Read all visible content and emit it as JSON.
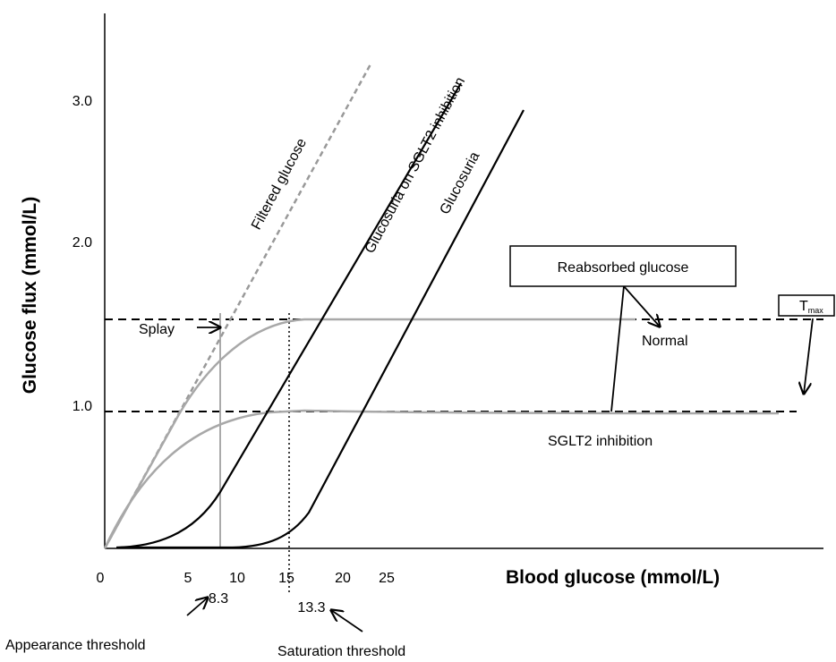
{
  "axes": {
    "y_title": "Glucose flux (mmol/L)",
    "x_title": "Blood glucose (mmol/L)",
    "y_ticks": [
      "3.0",
      "2.0",
      "1.0"
    ],
    "x_ticks": [
      "0",
      "5",
      "10",
      "15",
      "20",
      "25"
    ]
  },
  "curve_labels": {
    "filtered": "Filtered glucose",
    "glucosuria_sglt2": "Glucosuria on SGLT2 inhibition",
    "glucosuria": "Glucosuria"
  },
  "annotations": {
    "reabsorbed": "Reabsorbed glucose",
    "normal": "Normal",
    "sglt2": "SGLT2 inhibition",
    "tmax_main": "T",
    "tmax_sub": "max",
    "splay": "Splay",
    "appearance_value": "8.3",
    "saturation_value": "13.3",
    "appearance": "Appearance threshold",
    "saturation": "Saturation threshold"
  }
}
